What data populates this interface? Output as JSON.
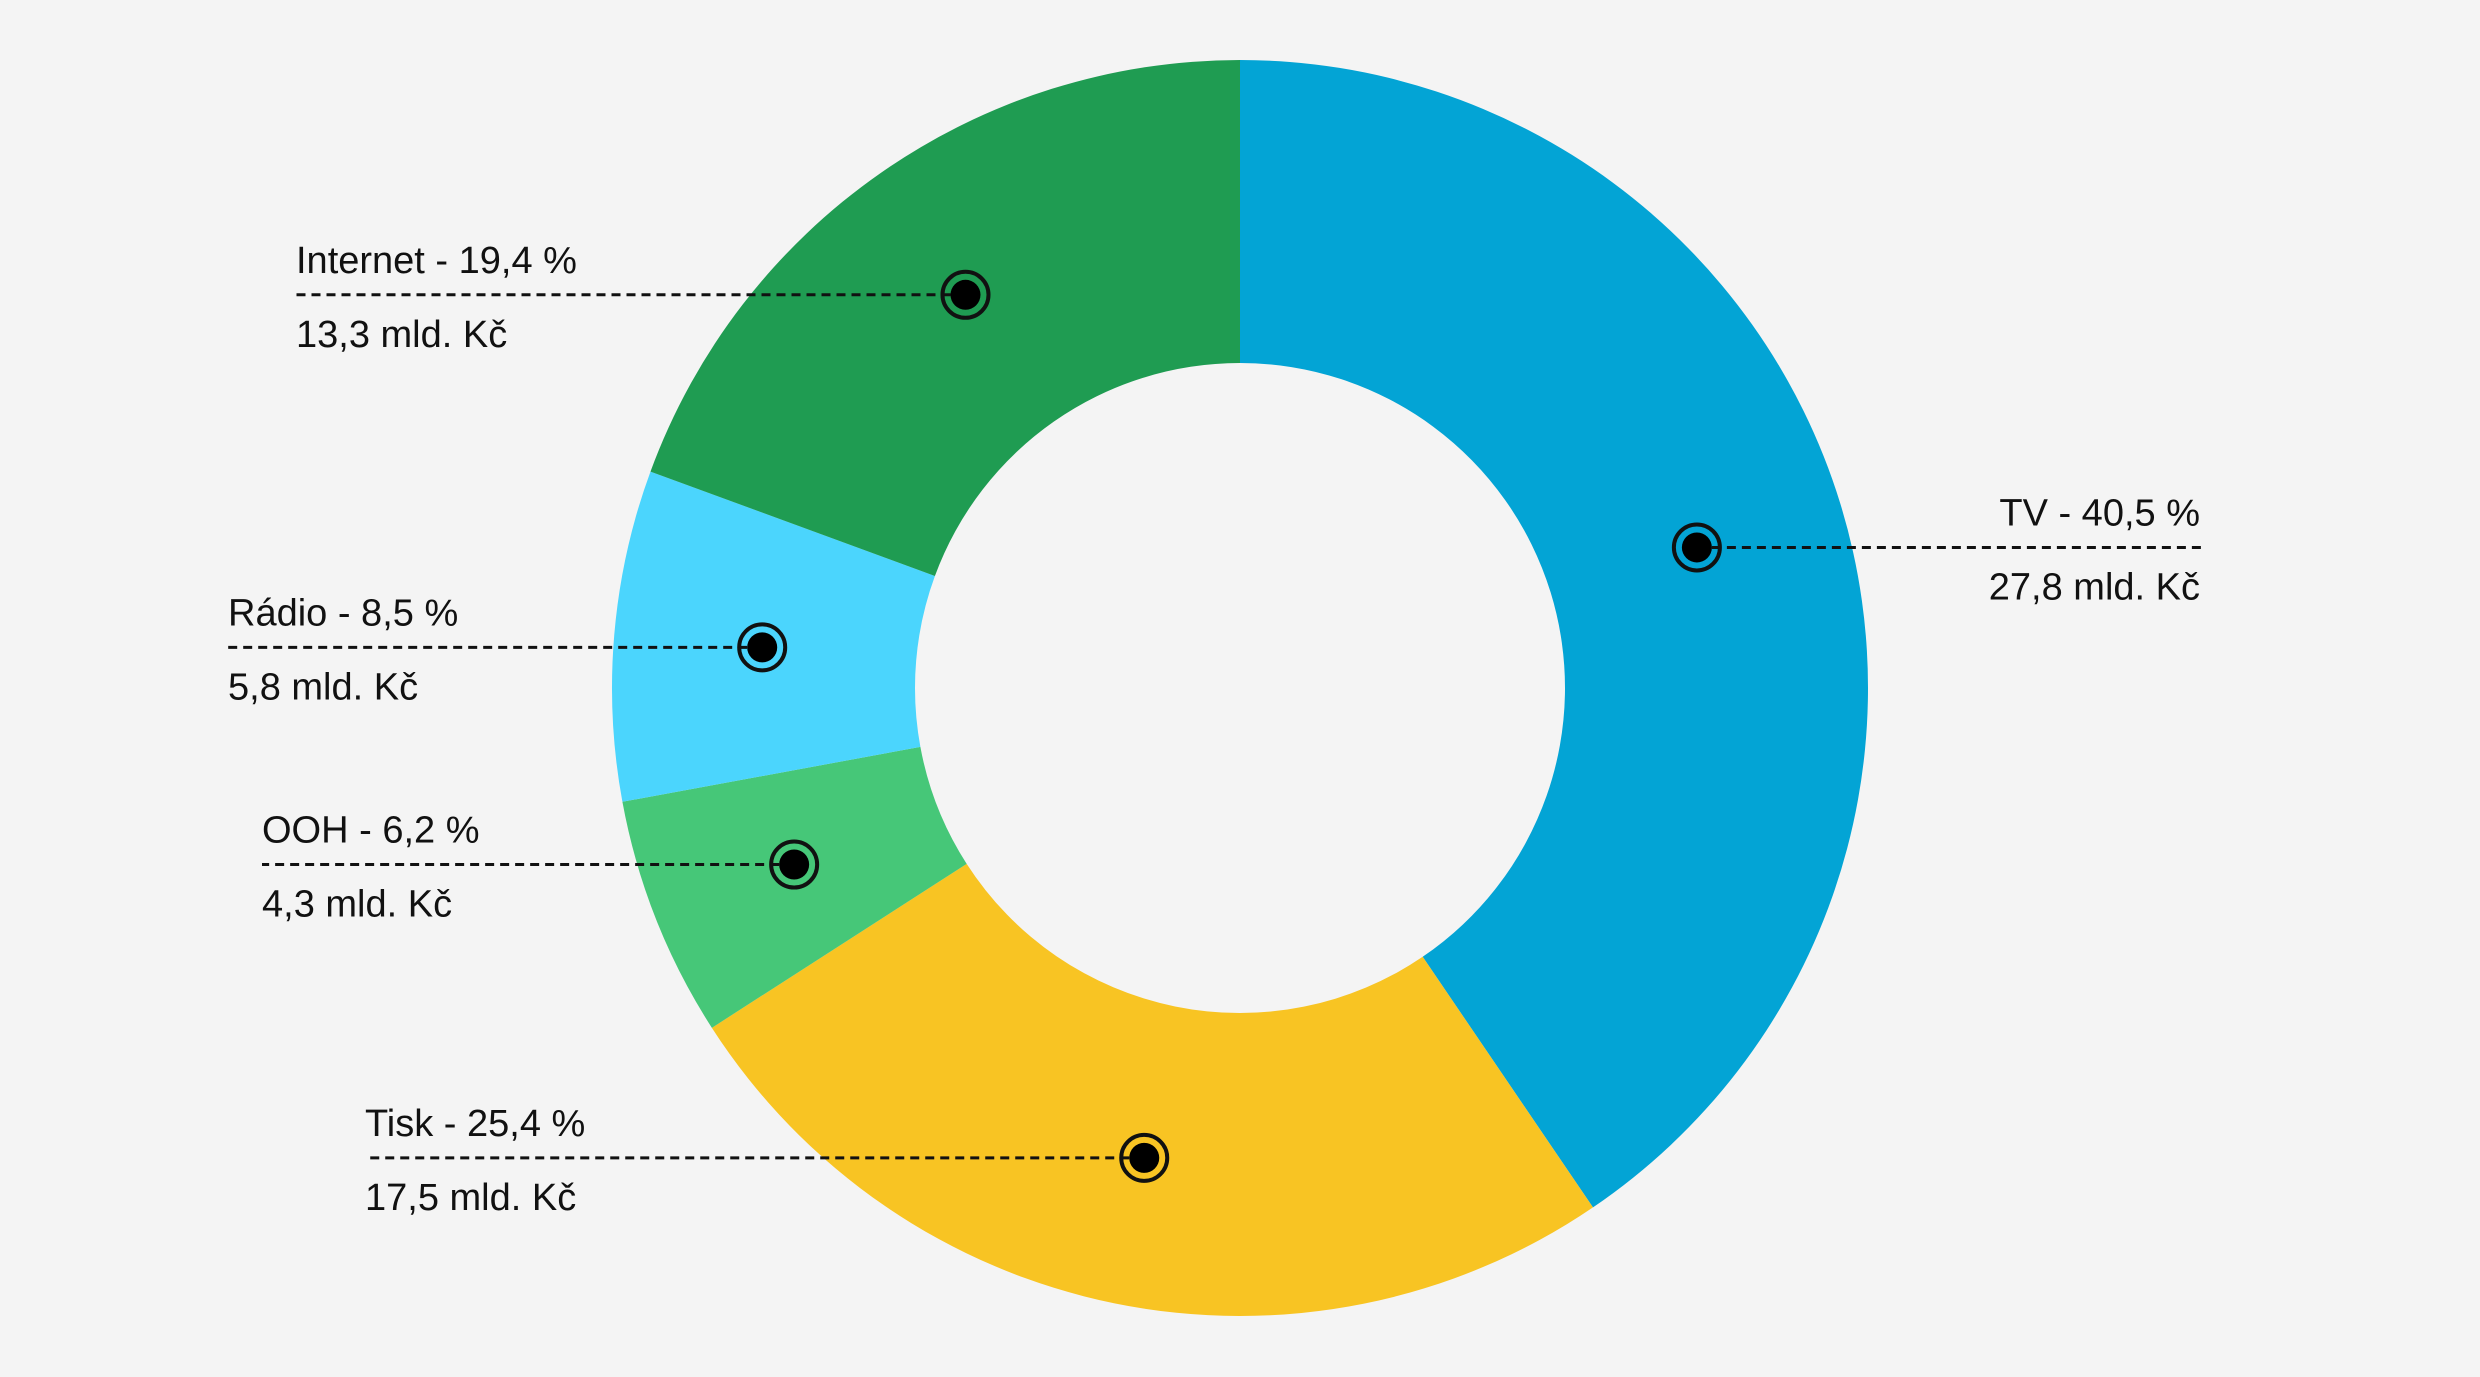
{
  "chart_data": {
    "type": "pie",
    "variant": "donut",
    "title": "",
    "legend": "none (callout labels)",
    "unit_share": "%",
    "unit_amount": "mld. Kč",
    "slices": [
      {
        "name": "TV",
        "share": 40.5,
        "amount": 27.8,
        "color": "#03a4d5",
        "label": "TV - 40,5 %",
        "value_label": "27,8 mld. Kč"
      },
      {
        "name": "Tisk",
        "share": 25.4,
        "amount": 17.5,
        "color": "#f8c423",
        "label": "Tisk - 25,4 %",
        "value_label": "17,5 mld. Kč"
      },
      {
        "name": "OOH",
        "share": 6.2,
        "amount": 4.3,
        "color": "#46c778",
        "label": "OOH - 6,2 %",
        "value_label": "4,3 mld. Kč"
      },
      {
        "name": "Rádio",
        "share": 8.5,
        "amount": 5.8,
        "color": "#4bd5fd",
        "label": "Rádio - 8,5 %",
        "value_label": "5,8 mld. Kč"
      },
      {
        "name": "Internet",
        "share": 19.4,
        "amount": 13.3,
        "color": "#1f9c52",
        "label": "Internet - 19,4 %",
        "value_label": "13,3 mld. Kč"
      }
    ]
  }
}
